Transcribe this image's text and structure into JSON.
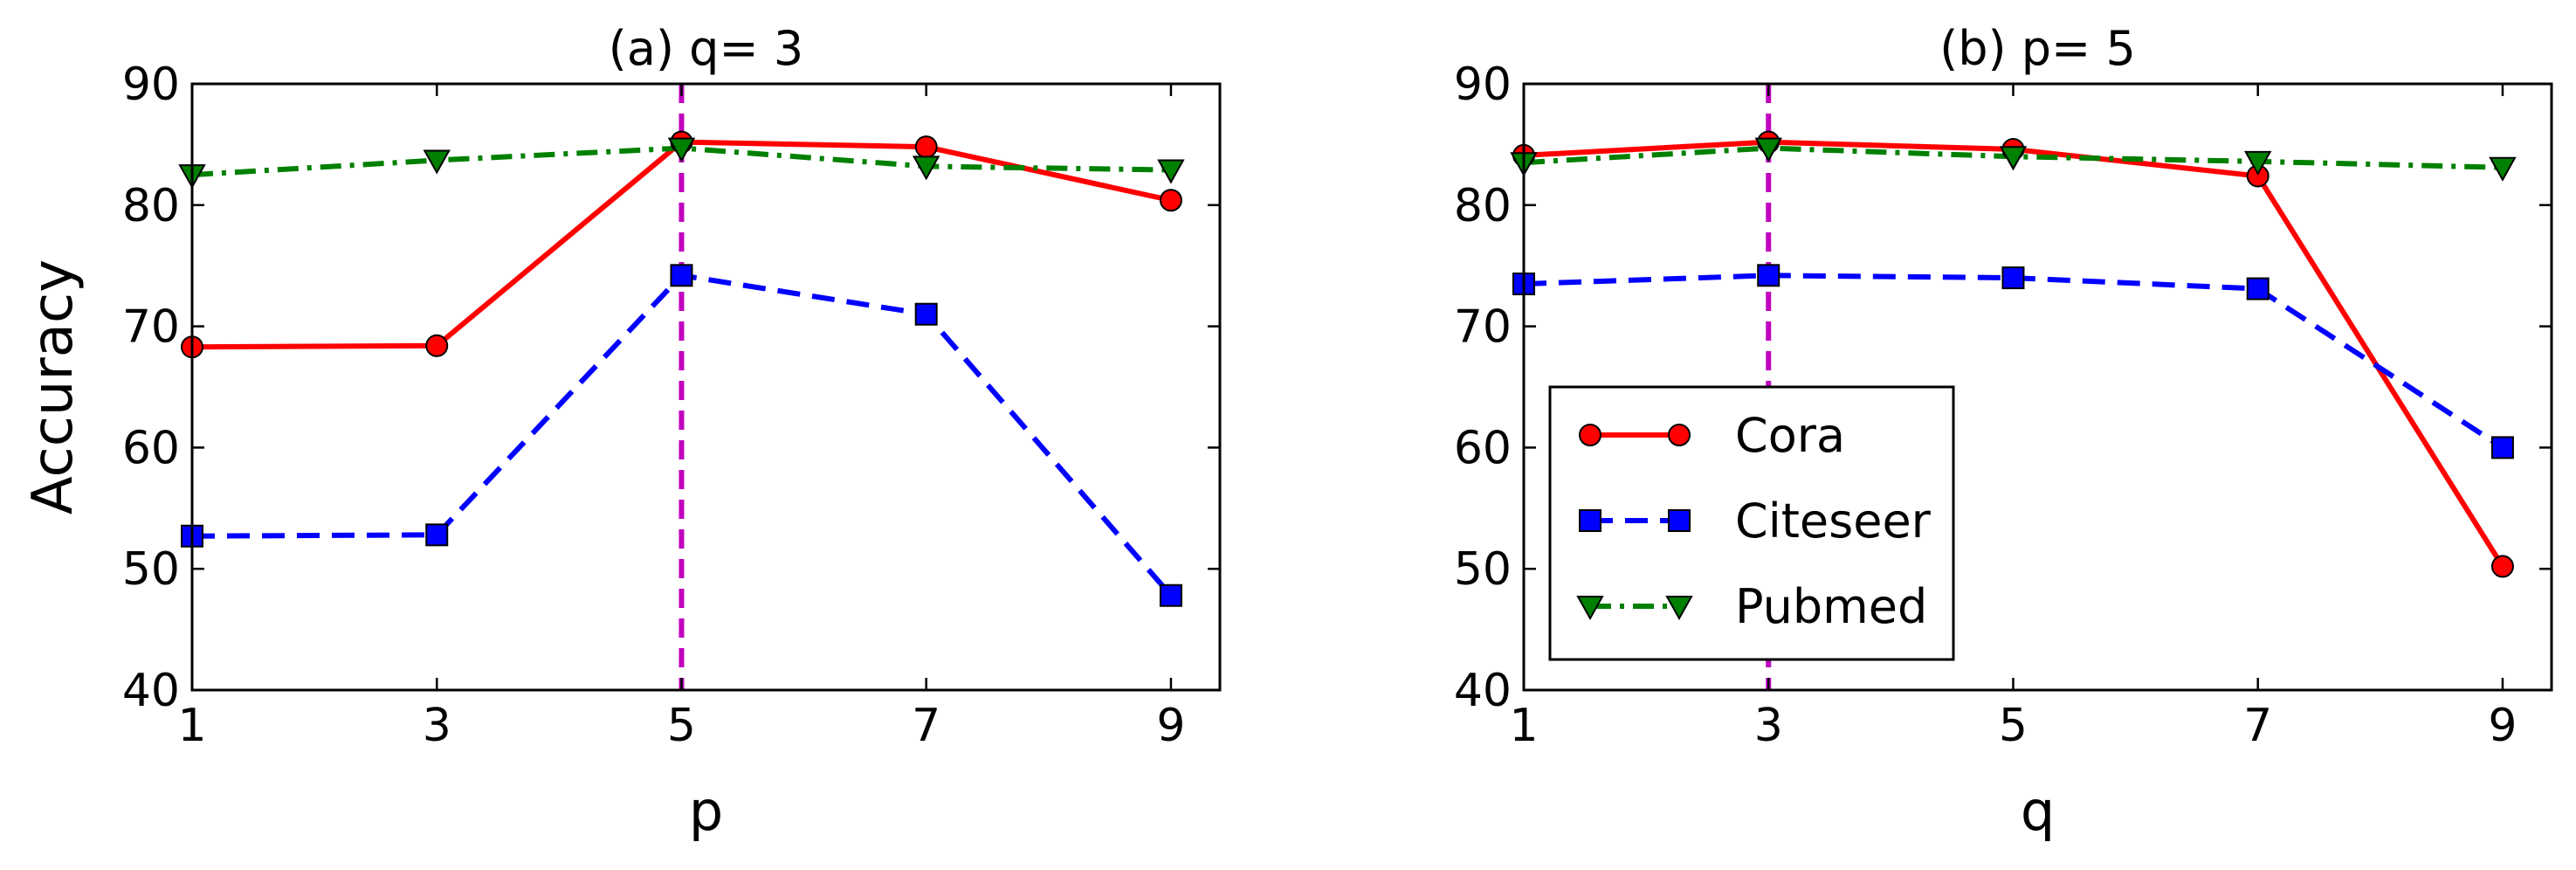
{
  "chart_data": [
    {
      "type": "line",
      "title": "(a) q= 3",
      "xlabel": "p",
      "ylabel": "Accuracy",
      "x": [
        1,
        3,
        5,
        7,
        9
      ],
      "xticks": [
        "1",
        "3",
        "5",
        "7",
        "9"
      ],
      "xlim": [
        1,
        9.4
      ],
      "ylim": [
        40,
        90
      ],
      "yticks": [
        "40",
        "50",
        "60",
        "70",
        "80",
        "90"
      ],
      "vline_x": 5,
      "legend": null,
      "series": [
        {
          "name": "Cora",
          "values": [
            68.3,
            68.4,
            85.2,
            84.8,
            80.4
          ],
          "color": "#ff0000",
          "dash": "solid",
          "marker": "circle"
        },
        {
          "name": "Citeseer",
          "values": [
            52.7,
            52.8,
            74.2,
            71.0,
            47.8
          ],
          "color": "#0000ff",
          "dash": "dashed",
          "marker": "square"
        },
        {
          "name": "Pubmed",
          "values": [
            82.5,
            83.7,
            84.7,
            83.2,
            82.9
          ],
          "color": "#008000",
          "dash": "dashdot",
          "marker": "triangle-down"
        }
      ]
    },
    {
      "type": "line",
      "title": "(b) p= 5",
      "xlabel": "q",
      "ylabel": "",
      "x": [
        1,
        3,
        5,
        7,
        9
      ],
      "xticks": [
        "1",
        "3",
        "5",
        "7",
        "9"
      ],
      "xlim": [
        1,
        9.4
      ],
      "ylim": [
        40,
        90
      ],
      "yticks": [
        "40",
        "50",
        "60",
        "70",
        "80",
        "90"
      ],
      "vline_x": 3,
      "legend": "lower-left",
      "series": [
        {
          "name": "Cora",
          "values": [
            84.1,
            85.2,
            84.6,
            82.4,
            50.2
          ],
          "color": "#ff0000",
          "dash": "solid",
          "marker": "circle"
        },
        {
          "name": "Citeseer",
          "values": [
            73.5,
            74.2,
            74.0,
            73.1,
            60.0
          ],
          "color": "#0000ff",
          "dash": "dashed",
          "marker": "square"
        },
        {
          "name": "Pubmed",
          "values": [
            83.5,
            84.7,
            84.0,
            83.6,
            83.1
          ],
          "color": "#008000",
          "dash": "dashdot",
          "marker": "triangle-down"
        }
      ]
    }
  ],
  "vline_color": "#bf00bf"
}
